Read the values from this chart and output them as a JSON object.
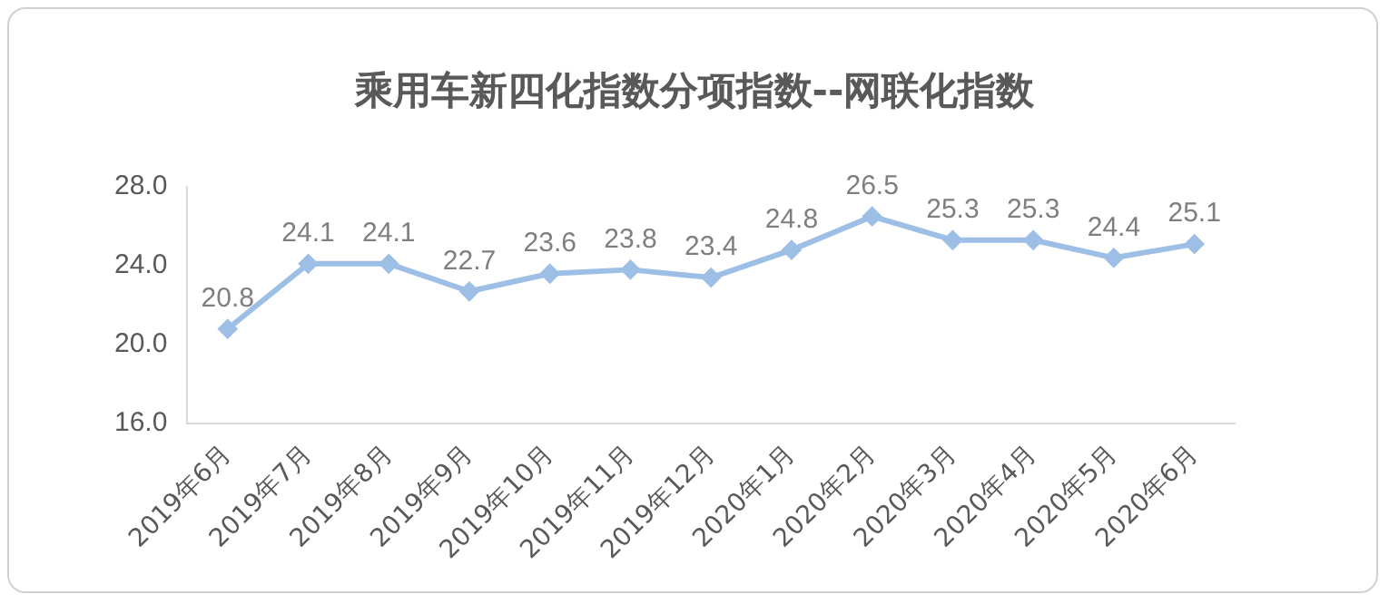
{
  "chart_data": {
    "type": "line",
    "title": "乘用车新四化指数分项指数--网联化指数",
    "categories": [
      "2019年6月",
      "2019年7月",
      "2019年8月",
      "2019年9月",
      "2019年10月",
      "2019年11月",
      "2019年12月",
      "2020年1月",
      "2020年2月",
      "2020年3月",
      "2020年4月",
      "2020年5月",
      "2020年6月"
    ],
    "series": [
      {
        "color": "#9dbfe6",
        "values": [
          20.8,
          24.1,
          24.1,
          22.7,
          23.6,
          23.8,
          23.4,
          24.8,
          26.5,
          25.3,
          25.3,
          24.4,
          25.1
        ]
      }
    ],
    "ylim": [
      16,
      28
    ],
    "yticks": [
      {
        "value": 16,
        "label": "16.0"
      },
      {
        "value": 20,
        "label": "20.0"
      },
      {
        "value": 24,
        "label": "24.0"
      },
      {
        "value": 28,
        "label": "28.0"
      }
    ],
    "grid": false,
    "legend": false,
    "marker": "diamond",
    "line_style": "solid",
    "data_labels": true
  }
}
